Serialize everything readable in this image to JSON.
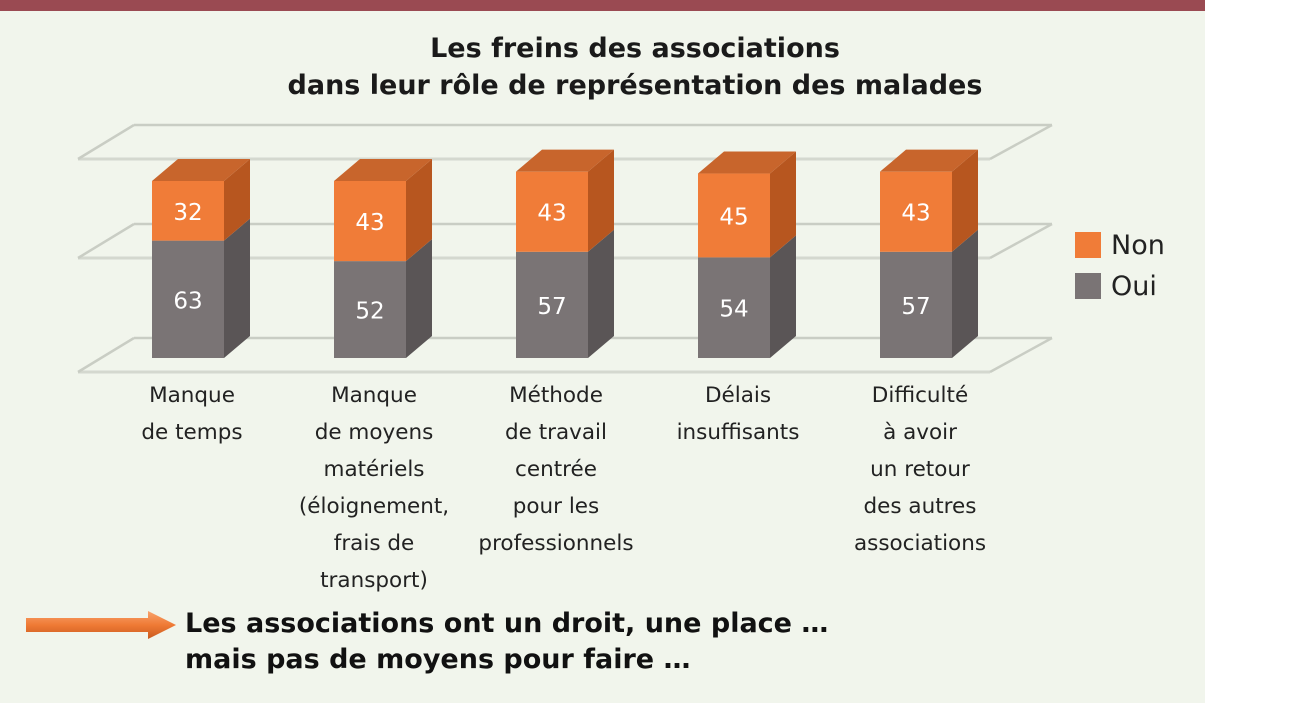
{
  "chart_data": {
    "type": "bar",
    "stacked": true,
    "three_d": true,
    "title": [
      "Les freins des associations",
      "dans leur rôle de représentation des malades"
    ],
    "categories": [
      [
        "Manque",
        "de temps"
      ],
      [
        "Manque",
        "de moyens",
        "matériels",
        "(éloignement,",
        "frais de",
        "transport)"
      ],
      [
        "Méthode",
        "de travail",
        "centrée",
        "pour les",
        "professionnels"
      ],
      [
        "Délais",
        "insuffisants"
      ],
      [
        "Difficulté",
        "à avoir",
        "un retour",
        "des autres",
        "associations"
      ]
    ],
    "series": [
      {
        "name": "Oui",
        "color": "#7a7475",
        "values": [
          63,
          52,
          57,
          54,
          57
        ]
      },
      {
        "name": "Non",
        "color": "#f07c38",
        "values": [
          32,
          43,
          43,
          45,
          43
        ]
      }
    ],
    "ylim": [
      0,
      125
    ],
    "grid": true,
    "legend": "right"
  },
  "conclusion": [
    "Les associations ont un droit, une place …",
    "mais pas de moyens pour faire …"
  ],
  "colors": {
    "header_bar": "#9a4a52",
    "background": "#f1f5ec",
    "arrow": "#f07c38"
  }
}
